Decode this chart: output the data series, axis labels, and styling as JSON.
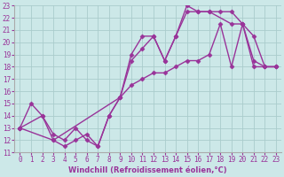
{
  "xlabel": "Windchill (Refroidissement éolien,°C)",
  "xlim": [
    -0.5,
    23.5
  ],
  "ylim": [
    11,
    23
  ],
  "xticks": [
    0,
    1,
    2,
    3,
    4,
    5,
    6,
    7,
    8,
    9,
    10,
    11,
    12,
    13,
    14,
    15,
    16,
    17,
    18,
    19,
    20,
    21,
    22,
    23
  ],
  "yticks": [
    11,
    12,
    13,
    14,
    15,
    16,
    17,
    18,
    19,
    20,
    21,
    22,
    23
  ],
  "line_color": "#993399",
  "bg_color": "#cce8e8",
  "grid_color": "#aacccc",
  "line1_x": [
    0,
    1,
    2,
    3,
    4,
    5,
    6,
    7,
    8,
    9,
    10,
    11,
    12,
    13,
    14,
    15,
    16,
    17,
    18,
    19,
    20,
    21,
    22,
    23
  ],
  "line1_y": [
    13,
    15,
    14,
    12,
    11.5,
    12,
    12.5,
    11.5,
    14,
    15.5,
    19.0,
    20.5,
    20.5,
    18.5,
    20.5,
    23.0,
    22.5,
    22.5,
    22.5,
    22.5,
    21.5,
    20.5,
    18,
    18
  ],
  "line2_x": [
    0,
    2,
    3,
    4,
    5,
    6,
    7,
    8,
    9,
    10,
    11,
    12,
    13,
    14,
    15,
    16,
    17,
    19,
    20,
    21,
    22,
    23
  ],
  "line2_y": [
    13,
    14,
    12.5,
    12,
    13,
    12,
    11.5,
    14,
    15.5,
    18.5,
    19.5,
    20.5,
    18.5,
    20.5,
    22.5,
    22.5,
    22.5,
    21.5,
    21.5,
    18.5,
    18,
    18
  ],
  "line3_x": [
    0,
    3,
    9,
    10,
    11,
    12,
    13,
    14,
    15,
    16,
    17,
    18,
    19,
    20,
    21,
    22,
    23
  ],
  "line3_y": [
    13,
    12,
    15.5,
    16.5,
    17,
    17.5,
    17.5,
    18,
    18.5,
    18.5,
    19,
    21.5,
    18,
    21.5,
    18,
    18,
    18
  ],
  "marker": "D",
  "markersize": 2.5,
  "linewidth": 1.0,
  "tick_fontsize": 5.5,
  "xlabel_fontsize": 6.0
}
